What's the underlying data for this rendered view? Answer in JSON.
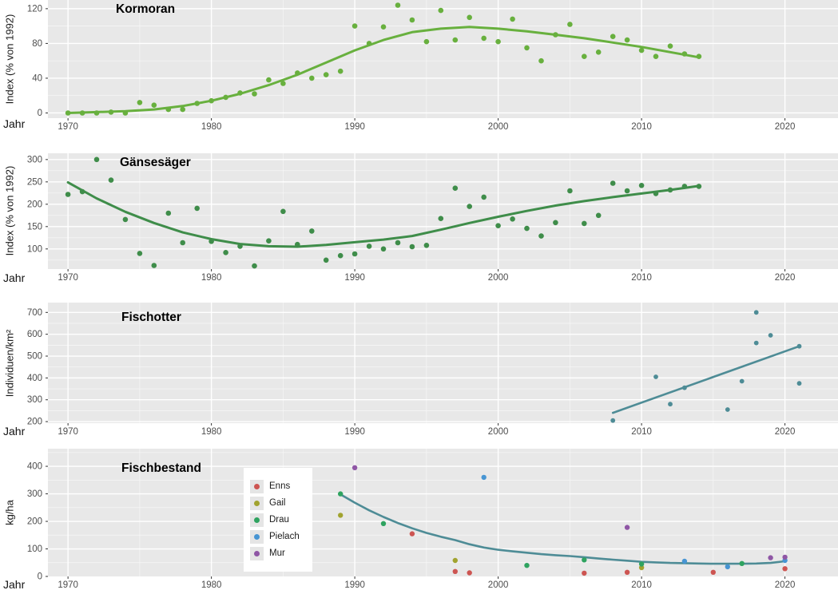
{
  "page": {
    "background": "#ffffff",
    "panel_background": "#e8e8e8",
    "grid_major_color": "#ffffff",
    "grid_minor_color": "#ffffff",
    "tick_text_color": "#4d4d4d",
    "text_color": "#1a1a1a"
  },
  "x_axis": {
    "label": "Jahr",
    "ticks": [
      1970,
      1980,
      1990,
      2000,
      2010,
      2020
    ],
    "minor_ticks": [
      1975,
      1985,
      1995,
      2005,
      2015
    ],
    "range": [
      1968.6,
      2023.7
    ]
  },
  "chart_data": [
    {
      "id": "kormoran",
      "type": "scatter",
      "title": "Kormoran",
      "xlabel": "Jahr",
      "ylabel": "Index (% von 1992)",
      "color": "#68b03e",
      "yticks": [
        0,
        40,
        80,
        120
      ],
      "y_minor": [
        20,
        60,
        100
      ],
      "ylim": [
        -6,
        130
      ],
      "points": [
        [
          1970,
          0
        ],
        [
          1971,
          0
        ],
        [
          1972,
          0
        ],
        [
          1973,
          1
        ],
        [
          1974,
          0
        ],
        [
          1975,
          12
        ],
        [
          1976,
          9
        ],
        [
          1977,
          4
        ],
        [
          1978,
          4
        ],
        [
          1979,
          11
        ],
        [
          1980,
          14
        ],
        [
          1981,
          18
        ],
        [
          1982,
          23
        ],
        [
          1983,
          22
        ],
        [
          1984,
          38
        ],
        [
          1985,
          34
        ],
        [
          1986,
          46
        ],
        [
          1987,
          40
        ],
        [
          1988,
          44
        ],
        [
          1989,
          48
        ],
        [
          1990,
          100
        ],
        [
          1991,
          80
        ],
        [
          1992,
          99
        ],
        [
          1993,
          124
        ],
        [
          1994,
          107
        ],
        [
          1995,
          82
        ],
        [
          1996,
          118
        ],
        [
          1997,
          84
        ],
        [
          1998,
          110
        ],
        [
          1999,
          86
        ],
        [
          2000,
          82
        ],
        [
          2001,
          108
        ],
        [
          2002,
          75
        ],
        [
          2003,
          60
        ],
        [
          2004,
          90
        ],
        [
          2005,
          102
        ],
        [
          2006,
          65
        ],
        [
          2007,
          70
        ],
        [
          2008,
          88
        ],
        [
          2009,
          84
        ],
        [
          2010,
          72
        ],
        [
          2011,
          65
        ],
        [
          2012,
          77
        ],
        [
          2013,
          68
        ],
        [
          2014,
          65
        ]
      ],
      "trend": [
        [
          1970,
          0
        ],
        [
          1972,
          1
        ],
        [
          1974,
          2
        ],
        [
          1976,
          4
        ],
        [
          1978,
          8
        ],
        [
          1980,
          14
        ],
        [
          1982,
          22
        ],
        [
          1984,
          32
        ],
        [
          1986,
          44
        ],
        [
          1988,
          58
        ],
        [
          1990,
          72
        ],
        [
          1992,
          84
        ],
        [
          1994,
          93
        ],
        [
          1996,
          97
        ],
        [
          1998,
          99
        ],
        [
          2000,
          97
        ],
        [
          2002,
          94
        ],
        [
          2004,
          90
        ],
        [
          2006,
          86
        ],
        [
          2008,
          81
        ],
        [
          2010,
          76
        ],
        [
          2012,
          70
        ],
        [
          2014,
          64
        ]
      ]
    },
    {
      "id": "gaensesaeger",
      "type": "scatter",
      "title": "Gänsesäger",
      "xlabel": "Jahr",
      "ylabel": "Index (% von 1992)",
      "color": "#3f8d4a",
      "yticks": [
        100,
        150,
        200,
        250,
        300
      ],
      "y_minor": [
        75,
        125,
        175,
        225,
        275
      ],
      "ylim": [
        55,
        314
      ],
      "points": [
        [
          1970,
          222
        ],
        [
          1971,
          228
        ],
        [
          1972,
          300
        ],
        [
          1973,
          254
        ],
        [
          1974,
          166
        ],
        [
          1975,
          90
        ],
        [
          1976,
          63
        ],
        [
          1977,
          180
        ],
        [
          1978,
          114
        ],
        [
          1979,
          191
        ],
        [
          1980,
          117
        ],
        [
          1981,
          92
        ],
        [
          1982,
          106
        ],
        [
          1983,
          62
        ],
        [
          1984,
          118
        ],
        [
          1985,
          184
        ],
        [
          1986,
          110
        ],
        [
          1987,
          140
        ],
        [
          1988,
          75
        ],
        [
          1989,
          85
        ],
        [
          1990,
          89
        ],
        [
          1991,
          106
        ],
        [
          1992,
          100
        ],
        [
          1993,
          114
        ],
        [
          1994,
          105
        ],
        [
          1995,
          108
        ],
        [
          1996,
          168
        ],
        [
          1997,
          236
        ],
        [
          1998,
          195
        ],
        [
          1999,
          216
        ],
        [
          2000,
          152
        ],
        [
          2001,
          167
        ],
        [
          2002,
          146
        ],
        [
          2003,
          129
        ],
        [
          2004,
          159
        ],
        [
          2005,
          230
        ],
        [
          2006,
          157
        ],
        [
          2007,
          175
        ],
        [
          2008,
          247
        ],
        [
          2009,
          230
        ],
        [
          2010,
          242
        ],
        [
          2011,
          224
        ],
        [
          2012,
          232
        ],
        [
          2013,
          240
        ],
        [
          2014,
          240
        ]
      ],
      "trend": [
        [
          1970,
          249
        ],
        [
          1972,
          213
        ],
        [
          1974,
          183
        ],
        [
          1976,
          158
        ],
        [
          1978,
          137
        ],
        [
          1980,
          122
        ],
        [
          1982,
          111
        ],
        [
          1984,
          106
        ],
        [
          1986,
          105
        ],
        [
          1988,
          109
        ],
        [
          1990,
          115
        ],
        [
          1992,
          121
        ],
        [
          1994,
          129
        ],
        [
          1996,
          143
        ],
        [
          1998,
          158
        ],
        [
          2000,
          172
        ],
        [
          2002,
          185
        ],
        [
          2004,
          197
        ],
        [
          2006,
          207
        ],
        [
          2008,
          216
        ],
        [
          2010,
          224
        ],
        [
          2012,
          232
        ],
        [
          2014,
          241
        ]
      ]
    },
    {
      "id": "fischotter",
      "type": "scatter",
      "title": "Fischotter",
      "xlabel": "Jahr",
      "ylabel": "Individuen/km²",
      "color": "#4e8c96",
      "yticks": [
        200,
        300,
        400,
        500,
        600,
        700
      ],
      "y_minor": [
        250,
        350,
        450,
        550,
        650
      ],
      "ylim": [
        193,
        745
      ],
      "points": [
        [
          2008,
          205
        ],
        [
          2011,
          405
        ],
        [
          2012,
          280
        ],
        [
          2013,
          355
        ],
        [
          2016,
          255
        ],
        [
          2017,
          385
        ],
        [
          2018,
          560
        ],
        [
          2018,
          700
        ],
        [
          2019,
          595
        ],
        [
          2021,
          375
        ],
        [
          2021,
          545
        ]
      ],
      "trend": [
        [
          2008,
          240
        ],
        [
          2021,
          545
        ]
      ]
    },
    {
      "id": "fischbestand",
      "type": "scatter",
      "title": "Fischbestand",
      "xlabel": "Jahr",
      "ylabel": "kg/ha",
      "trend_color": "#4e8c96",
      "yticks": [
        0,
        100,
        200,
        300,
        400
      ],
      "y_minor": [
        50,
        150,
        250,
        350,
        450
      ],
      "ylim": [
        0,
        464
      ],
      "legend_position": "inside-left",
      "series": [
        {
          "name": "Enns",
          "color": "#cd5552",
          "points": [
            [
              1994,
              155
            ],
            [
              1997,
              18
            ],
            [
              1998,
              13
            ],
            [
              2006,
              12
            ],
            [
              2009,
              15
            ],
            [
              2015,
              15
            ],
            [
              2020,
              28
            ]
          ]
        },
        {
          "name": "Gail",
          "color": "#a1a32f",
          "points": [
            [
              1989,
              222
            ],
            [
              1997,
              58
            ],
            [
              2010,
              32
            ]
          ]
        },
        {
          "name": "Drau",
          "color": "#2fa360",
          "points": [
            [
              1989,
              300
            ],
            [
              1992,
              192
            ],
            [
              2002,
              40
            ],
            [
              2006,
              60
            ],
            [
              2010,
              45
            ],
            [
              2017,
              47
            ]
          ]
        },
        {
          "name": "Pielach",
          "color": "#4795d3",
          "points": [
            [
              1999,
              360
            ],
            [
              2013,
              55
            ],
            [
              2016,
              35
            ],
            [
              2020,
              58
            ]
          ]
        },
        {
          "name": "Mur",
          "color": "#8f56a5",
          "points": [
            [
              1990,
              395
            ],
            [
              2009,
              178
            ],
            [
              2019,
              68
            ],
            [
              2020,
              70
            ]
          ]
        }
      ],
      "trend": [
        [
          1989,
          298
        ],
        [
          1990,
          268
        ],
        [
          1991,
          240
        ],
        [
          1992,
          216
        ],
        [
          1993,
          194
        ],
        [
          1994,
          175
        ],
        [
          1995,
          158
        ],
        [
          1996,
          144
        ],
        [
          1997,
          132
        ],
        [
          1998,
          117
        ],
        [
          1999,
          105
        ],
        [
          2000,
          97
        ],
        [
          2001,
          91
        ],
        [
          2002,
          86
        ],
        [
          2003,
          81
        ],
        [
          2004,
          77
        ],
        [
          2005,
          74
        ],
        [
          2006,
          70
        ],
        [
          2007,
          65
        ],
        [
          2008,
          61
        ],
        [
          2009,
          57
        ],
        [
          2010,
          53
        ],
        [
          2011,
          51
        ],
        [
          2012,
          49
        ],
        [
          2013,
          48
        ],
        [
          2014,
          47
        ],
        [
          2015,
          46
        ],
        [
          2016,
          46
        ],
        [
          2017,
          46
        ],
        [
          2018,
          47
        ],
        [
          2019,
          49
        ],
        [
          2020,
          55
        ]
      ]
    }
  ]
}
